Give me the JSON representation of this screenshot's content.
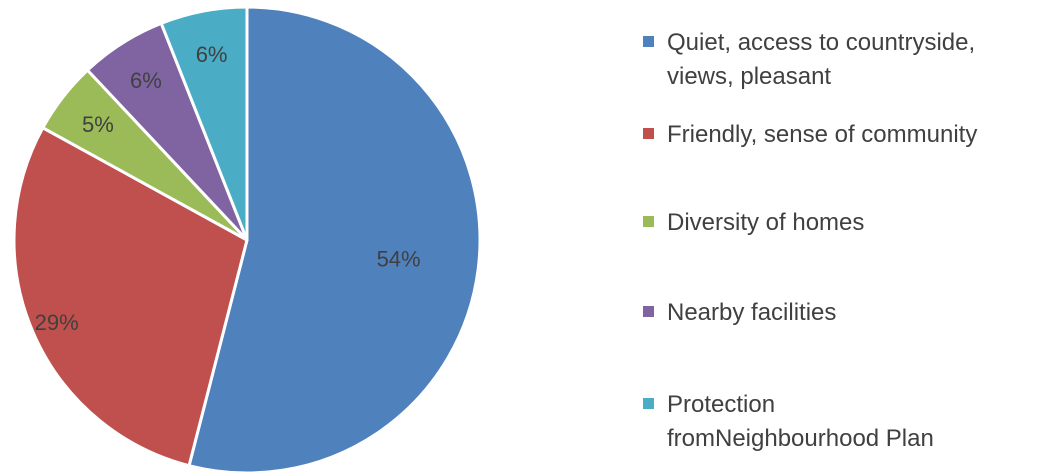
{
  "chart_data": {
    "type": "pie",
    "title": "",
    "categories": [
      "Quiet, access to countryside, views, pleasant",
      "Friendly, sense of community",
      "Diversity of homes",
      "Nearby facilities",
      "Protection fromNeighbourhood Plan"
    ],
    "legend_lines": [
      [
        "Quiet, access to countryside,",
        "views, pleasant"
      ],
      [
        "Friendly, sense of community"
      ],
      [
        "Diversity of homes"
      ],
      [
        "Nearby facilities"
      ],
      [
        "Protection",
        "fromNeighbourhood Plan"
      ]
    ],
    "values": [
      54,
      29,
      5,
      6,
      6
    ],
    "labels": [
      "54%",
      "29%",
      "5%",
      "6%",
      "6%"
    ],
    "colors": [
      "#4f81bd",
      "#c0504d",
      "#9bbb59",
      "#8064a2",
      "#4bacc6"
    ],
    "legend_position": "right"
  }
}
